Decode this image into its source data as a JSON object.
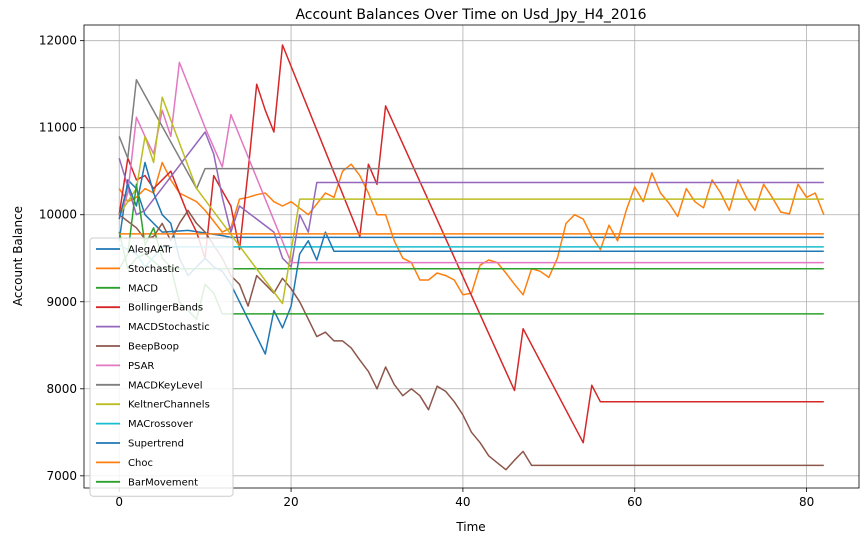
{
  "chart_data": {
    "type": "line",
    "title": "Account Balances Over Time on Usd_Jpy_H4_2016",
    "xlabel": "Time",
    "ylabel": "Account Balance",
    "xlim": [
      -4.1,
      86.1
    ],
    "ylim": [
      6860,
      12180
    ],
    "xticks": [
      0,
      20,
      40,
      60,
      80
    ],
    "yticks": [
      7000,
      8000,
      9000,
      10000,
      11000,
      12000
    ],
    "grid": true,
    "legend_position": "lower-left",
    "series": [
      {
        "name": "AlegAATr",
        "color": "#1f77b4",
        "points": [
          [
            0,
            9700
          ],
          [
            1,
            10400
          ],
          [
            2,
            10300
          ],
          [
            3,
            10000
          ],
          [
            5,
            9800
          ],
          [
            8,
            9820
          ],
          [
            12,
            9760
          ],
          [
            13,
            9740
          ],
          [
            14,
            9740
          ],
          [
            82,
            9740
          ]
        ]
      },
      {
        "name": "Stochastic",
        "color": "#ff7f0e",
        "points": [
          [
            0,
            10300
          ],
          [
            1,
            10150
          ],
          [
            2,
            10200
          ],
          [
            3,
            10300
          ],
          [
            4,
            10250
          ],
          [
            5,
            10600
          ],
          [
            6,
            10400
          ],
          [
            7,
            10250
          ],
          [
            9,
            10150
          ],
          [
            10,
            10050
          ],
          [
            12,
            9800
          ],
          [
            13,
            9850
          ],
          [
            14,
            10180
          ],
          [
            15,
            10200
          ],
          [
            16,
            10230
          ],
          [
            17,
            10250
          ],
          [
            18,
            10150
          ],
          [
            19,
            10100
          ],
          [
            20,
            10150
          ],
          [
            22,
            10000
          ],
          [
            24,
            10250
          ],
          [
            25,
            10200
          ],
          [
            26,
            10500
          ],
          [
            27,
            10580
          ],
          [
            28,
            10450
          ],
          [
            29,
            10250
          ],
          [
            30,
            10000
          ],
          [
            31,
            10000
          ],
          [
            32,
            9700
          ],
          [
            33,
            9500
          ],
          [
            34,
            9450
          ],
          [
            35,
            9250
          ],
          [
            36,
            9250
          ],
          [
            37,
            9330
          ],
          [
            38,
            9300
          ],
          [
            39,
            9250
          ],
          [
            40,
            9080
          ],
          [
            41,
            9100
          ],
          [
            42,
            9420
          ],
          [
            43,
            9480
          ],
          [
            44,
            9450
          ],
          [
            45,
            9330
          ],
          [
            46,
            9200
          ],
          [
            47,
            9080
          ],
          [
            48,
            9380
          ],
          [
            49,
            9350
          ],
          [
            50,
            9280
          ],
          [
            51,
            9500
          ],
          [
            52,
            9900
          ],
          [
            53,
            10000
          ],
          [
            54,
            9950
          ],
          [
            55,
            9750
          ],
          [
            56,
            9600
          ],
          [
            57,
            9880
          ],
          [
            58,
            9700
          ],
          [
            59,
            10050
          ],
          [
            60,
            10320
          ],
          [
            61,
            10150
          ],
          [
            62,
            10480
          ],
          [
            63,
            10250
          ],
          [
            64,
            10130
          ],
          [
            65,
            9980
          ],
          [
            66,
            10300
          ],
          [
            67,
            10150
          ],
          [
            68,
            10080
          ],
          [
            69,
            10400
          ],
          [
            70,
            10250
          ],
          [
            71,
            10050
          ],
          [
            72,
            10400
          ],
          [
            73,
            10200
          ],
          [
            74,
            10050
          ],
          [
            75,
            10350
          ],
          [
            76,
            10200
          ],
          [
            77,
            10030
          ],
          [
            78,
            10010
          ],
          [
            79,
            10350
          ],
          [
            80,
            10200
          ],
          [
            81,
            10250
          ],
          [
            82,
            10000
          ]
        ]
      },
      {
        "name": "MACD",
        "color": "#2ca02c",
        "points": [
          [
            0,
            9800
          ],
          [
            1,
            9380
          ],
          [
            2,
            9500
          ],
          [
            3,
            9550
          ],
          [
            5,
            9380
          ],
          [
            82,
            9380
          ]
        ]
      },
      {
        "name": "BollingerBands",
        "color": "#d62728",
        "points": [
          [
            0,
            10000
          ],
          [
            1,
            10650
          ],
          [
            2,
            10400
          ],
          [
            3,
            10450
          ],
          [
            4,
            10300
          ],
          [
            6,
            10500
          ],
          [
            8,
            10000
          ],
          [
            9,
            9800
          ],
          [
            10,
            9500
          ],
          [
            11,
            10450
          ],
          [
            13,
            10100
          ],
          [
            14,
            9600
          ],
          [
            15,
            10500
          ],
          [
            16,
            11500
          ],
          [
            17,
            11200
          ],
          [
            18,
            10950
          ],
          [
            19,
            11950
          ],
          [
            28,
            9750
          ],
          [
            29,
            10580
          ],
          [
            30,
            10350
          ],
          [
            31,
            11250
          ],
          [
            46,
            7980
          ],
          [
            47,
            8690
          ],
          [
            54,
            7380
          ],
          [
            55,
            8040
          ],
          [
            56,
            7850
          ],
          [
            82,
            7850
          ]
        ]
      },
      {
        "name": "MACDStochastic",
        "color": "#9467bd",
        "points": [
          [
            0,
            10650
          ],
          [
            2,
            10000
          ],
          [
            3,
            10050
          ],
          [
            10,
            10950
          ],
          [
            11,
            10700
          ],
          [
            12,
            10200
          ],
          [
            13,
            9800
          ],
          [
            14,
            10100
          ],
          [
            18,
            9800
          ],
          [
            19,
            9500
          ],
          [
            20,
            9400
          ],
          [
            21,
            10000
          ],
          [
            22,
            9800
          ],
          [
            23,
            10370
          ],
          [
            82,
            10370
          ]
        ]
      },
      {
        "name": "BeepBoop",
        "color": "#8c564b",
        "points": [
          [
            0,
            10000
          ],
          [
            2,
            9850
          ],
          [
            3,
            9720
          ],
          [
            4,
            9750
          ],
          [
            5,
            9900
          ],
          [
            6,
            9700
          ],
          [
            7,
            9900
          ],
          [
            8,
            10050
          ],
          [
            9,
            9900
          ],
          [
            10,
            9800
          ],
          [
            12,
            9500
          ],
          [
            13,
            9300
          ],
          [
            14,
            9200
          ],
          [
            15,
            8950
          ],
          [
            16,
            9300
          ],
          [
            17,
            9200
          ],
          [
            18,
            9100
          ],
          [
            19,
            9270
          ],
          [
            20,
            9150
          ],
          [
            21,
            9000
          ],
          [
            22,
            8800
          ],
          [
            23,
            8600
          ],
          [
            24,
            8650
          ],
          [
            25,
            8550
          ],
          [
            26,
            8550
          ],
          [
            27,
            8470
          ],
          [
            28,
            8330
          ],
          [
            29,
            8200
          ],
          [
            30,
            8000
          ],
          [
            31,
            8250
          ],
          [
            32,
            8050
          ],
          [
            33,
            7920
          ],
          [
            34,
            8000
          ],
          [
            35,
            7920
          ],
          [
            36,
            7760
          ],
          [
            37,
            8030
          ],
          [
            38,
            7970
          ],
          [
            39,
            7850
          ],
          [
            40,
            7700
          ],
          [
            41,
            7500
          ],
          [
            42,
            7380
          ],
          [
            43,
            7230
          ],
          [
            44,
            7150
          ],
          [
            45,
            7070
          ],
          [
            46,
            7180
          ],
          [
            47,
            7280
          ],
          [
            48,
            7120
          ],
          [
            82,
            7120
          ]
        ]
      },
      {
        "name": "PSAR",
        "color": "#e377c2",
        "points": [
          [
            0,
            9950
          ],
          [
            1,
            10250
          ],
          [
            2,
            11120
          ],
          [
            3,
            10900
          ],
          [
            4,
            10700
          ],
          [
            5,
            11200
          ],
          [
            6,
            10900
          ],
          [
            7,
            11750
          ],
          [
            10,
            11000
          ],
          [
            12,
            10550
          ],
          [
            13,
            11150
          ],
          [
            20,
            9450
          ],
          [
            82,
            9450
          ]
        ]
      },
      {
        "name": "MACDKeyLevel",
        "color": "#7f7f7f",
        "points": [
          [
            0,
            10900
          ],
          [
            1,
            10650
          ],
          [
            2,
            11550
          ],
          [
            9,
            10300
          ],
          [
            10,
            10530
          ],
          [
            82,
            10530
          ]
        ]
      },
      {
        "name": "KeltnerChannels",
        "color": "#bcbd22",
        "points": [
          [
            0,
            10000
          ],
          [
            2,
            10300
          ],
          [
            3,
            10900
          ],
          [
            4,
            10600
          ],
          [
            5,
            11350
          ],
          [
            9,
            10300
          ],
          [
            19,
            8980
          ],
          [
            21,
            10180
          ],
          [
            82,
            10180
          ]
        ]
      },
      {
        "name": "MACrossover",
        "color": "#17becf",
        "points": [
          [
            0,
            9650
          ],
          [
            1,
            9600
          ],
          [
            2,
            9550
          ],
          [
            3,
            9400
          ],
          [
            5,
            9630
          ],
          [
            82,
            9630
          ]
        ]
      },
      {
        "name": "Supertrend",
        "color": "#1f77b4",
        "points": [
          [
            0,
            9950
          ],
          [
            1,
            10350
          ],
          [
            2,
            10100
          ],
          [
            3,
            10600
          ],
          [
            4,
            10250
          ],
          [
            5,
            10000
          ],
          [
            6,
            9900
          ],
          [
            7,
            9500
          ],
          [
            8,
            9300
          ],
          [
            9,
            9400
          ],
          [
            10,
            9500
          ],
          [
            11,
            9400
          ],
          [
            12,
            9350
          ],
          [
            13,
            9200
          ],
          [
            14,
            9000
          ],
          [
            15,
            8800
          ],
          [
            16,
            8600
          ],
          [
            17,
            8400
          ],
          [
            18,
            8900
          ],
          [
            19,
            8700
          ],
          [
            20,
            8950
          ],
          [
            21,
            9550
          ],
          [
            22,
            9700
          ],
          [
            23,
            9480
          ],
          [
            24,
            9800
          ],
          [
            25,
            9580
          ],
          [
            82,
            9580
          ]
        ]
      },
      {
        "name": "Choc",
        "color": "#ff7f0e",
        "points": [
          [
            0,
            9780
          ],
          [
            82,
            9780
          ]
        ]
      },
      {
        "name": "BarMovement",
        "color": "#2ca02c",
        "points": [
          [
            0,
            9380
          ],
          [
            1,
            9550
          ],
          [
            2,
            10350
          ],
          [
            3,
            9650
          ],
          [
            4,
            9850
          ],
          [
            5,
            9500
          ],
          [
            6,
            9400
          ],
          [
            7,
            9000
          ],
          [
            8,
            8900
          ],
          [
            9,
            8800
          ],
          [
            10,
            9200
          ],
          [
            11,
            9100
          ],
          [
            12,
            8860
          ],
          [
            82,
            8860
          ]
        ]
      }
    ]
  }
}
